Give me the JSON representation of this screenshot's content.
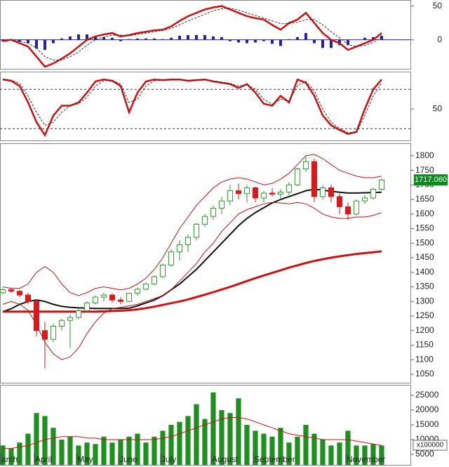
{
  "chart_data": [
    {
      "type": "macd",
      "ylim": [
        -43,
        59
      ],
      "yticks": [
        0,
        50
      ],
      "zero_line": true,
      "series": [
        {
          "color": "#cc1111",
          "dash": false,
          "values": [
            -2,
            0,
            -5,
            -10,
            -25,
            -40,
            -35,
            -28,
            -20,
            -10,
            0,
            5,
            8,
            10,
            5,
            7,
            10,
            12,
            14,
            15,
            20,
            28,
            35,
            40,
            45,
            48,
            50,
            45,
            40,
            35,
            32,
            30,
            22,
            15,
            25,
            30,
            40,
            25,
            10,
            0,
            -5,
            -15,
            -10,
            -5,
            0,
            10
          ]
        },
        {
          "color": "#333333",
          "dash": true,
          "values": [
            0,
            0,
            -2,
            -5,
            -12,
            -25,
            -30,
            -30,
            -25,
            -18,
            -8,
            0,
            4,
            7,
            7,
            6,
            8,
            10,
            12,
            14,
            17,
            22,
            28,
            33,
            38,
            43,
            46,
            47,
            44,
            40,
            36,
            32,
            28,
            24,
            24,
            26,
            30,
            30,
            22,
            12,
            3,
            -7,
            -10,
            -8,
            -4,
            4
          ]
        }
      ],
      "histogram": {
        "color": "#2222a0",
        "values": [
          -2,
          0,
          -3,
          -5,
          -13,
          -15,
          -5,
          2,
          5,
          8,
          8,
          5,
          4,
          3,
          -2,
          1,
          2,
          2,
          2,
          1,
          3,
          6,
          7,
          7,
          7,
          5,
          4,
          -2,
          -4,
          -5,
          -4,
          -2,
          -6,
          -9,
          1,
          4,
          10,
          -5,
          -12,
          -12,
          -8,
          -8,
          0,
          3,
          4,
          6
        ]
      }
    },
    {
      "type": "stochastic",
      "ylim": [
        2,
        107
      ],
      "yticks": [
        50
      ],
      "ref_lines": [
        80,
        20
      ],
      "series": [
        {
          "color": "#cc1111",
          "dash": false,
          "values": [
            95,
            93,
            85,
            60,
            30,
            10,
            40,
            55,
            55,
            60,
            75,
            92,
            95,
            93,
            85,
            45,
            75,
            92,
            95,
            94,
            95,
            95,
            93,
            94,
            95,
            92,
            90,
            88,
            82,
            88,
            75,
            58,
            55,
            70,
            60,
            95,
            90,
            70,
            40,
            25,
            18,
            12,
            15,
            50,
            80,
            95
          ]
        },
        {
          "color": "#333333",
          "dash": true,
          "values": [
            96,
            94,
            89,
            70,
            45,
            25,
            30,
            45,
            55,
            58,
            68,
            85,
            93,
            94,
            88,
            60,
            65,
            85,
            93,
            95,
            95,
            95,
            94,
            94,
            95,
            93,
            91,
            89,
            85,
            87,
            80,
            65,
            57,
            65,
            62,
            85,
            92,
            78,
            50,
            30,
            20,
            14,
            14,
            40,
            70,
            90
          ]
        }
      ]
    },
    {
      "type": "candlestick",
      "ylim": [
        1021,
        1843
      ],
      "yticks": [
        1050,
        1100,
        1150,
        1200,
        1250,
        1300,
        1350,
        1400,
        1450,
        1500,
        1550,
        1600,
        1650,
        1700,
        1750,
        1800
      ],
      "x": [
        0,
        1,
        2,
        3,
        4,
        5,
        6,
        7,
        8,
        9,
        10,
        11,
        12,
        13,
        14,
        15,
        16,
        17,
        18,
        19,
        20,
        21,
        22,
        23,
        24,
        25,
        26,
        27,
        28,
        29,
        30,
        31,
        32,
        33,
        34,
        35,
        36,
        37,
        38,
        39,
        40,
        41,
        42,
        43,
        44,
        45
      ],
      "up_color": "#2a9a2a",
      "down_color": "#d41c1c",
      "ohlc": [
        [
          1330,
          1345,
          1325,
          1340
        ],
        [
          1340,
          1348,
          1330,
          1335
        ],
        [
          1335,
          1340,
          1315,
          1322
        ],
        [
          1322,
          1330,
          1290,
          1300
        ],
        [
          1300,
          1305,
          1180,
          1200
        ],
        [
          1200,
          1230,
          1070,
          1170
        ],
        [
          1170,
          1225,
          1160,
          1215
        ],
        [
          1215,
          1240,
          1200,
          1235
        ],
        [
          1235,
          1255,
          1140,
          1245
        ],
        [
          1245,
          1275,
          1240,
          1268
        ],
        [
          1268,
          1300,
          1262,
          1295
        ],
        [
          1295,
          1320,
          1290,
          1315
        ],
        [
          1315,
          1330,
          1300,
          1322
        ],
        [
          1322,
          1328,
          1295,
          1305
        ],
        [
          1305,
          1315,
          1290,
          1300
        ],
        [
          1300,
          1330,
          1298,
          1328
        ],
        [
          1328,
          1348,
          1320,
          1342
        ],
        [
          1342,
          1365,
          1338,
          1360
        ],
        [
          1360,
          1390,
          1355,
          1385
        ],
        [
          1385,
          1430,
          1380,
          1425
        ],
        [
          1425,
          1480,
          1420,
          1470
        ],
        [
          1470,
          1510,
          1440,
          1495
        ],
        [
          1495,
          1530,
          1470,
          1520
        ],
        [
          1520,
          1570,
          1510,
          1565
        ],
        [
          1565,
          1600,
          1555,
          1592
        ],
        [
          1592,
          1630,
          1580,
          1620
        ],
        [
          1620,
          1660,
          1600,
          1645
        ],
        [
          1645,
          1700,
          1630,
          1680
        ],
        [
          1680,
          1705,
          1650,
          1670
        ],
        [
          1670,
          1700,
          1640,
          1690
        ],
        [
          1690,
          1695,
          1640,
          1655
        ],
        [
          1655,
          1680,
          1640,
          1672
        ],
        [
          1672,
          1690,
          1660,
          1668
        ],
        [
          1668,
          1685,
          1650,
          1675
        ],
        [
          1675,
          1710,
          1665,
          1700
        ],
        [
          1700,
          1760,
          1695,
          1755
        ],
        [
          1755,
          1800,
          1745,
          1780
        ],
        [
          1780,
          1790,
          1640,
          1660
        ],
        [
          1660,
          1700,
          1650,
          1690
        ],
        [
          1690,
          1700,
          1640,
          1660
        ],
        [
          1660,
          1670,
          1600,
          1625
        ],
        [
          1625,
          1640,
          1580,
          1600
        ],
        [
          1600,
          1650,
          1595,
          1645
        ],
        [
          1645,
          1665,
          1635,
          1655
        ],
        [
          1655,
          1690,
          1650,
          1685
        ],
        [
          1685,
          1722,
          1680,
          1717.06
        ]
      ],
      "last_label": "1717.060",
      "last_color": "#0b8a1e",
      "series": [
        {
          "color": "#111111",
          "width": 2,
          "values": [
            1265,
            1275,
            1290,
            1300,
            1305,
            1300,
            1290,
            1283,
            1280,
            1278,
            1277,
            1276,
            1276,
            1276,
            1276,
            1277,
            1285,
            1295,
            1305,
            1320,
            1340,
            1360,
            1385,
            1410,
            1440,
            1470,
            1500,
            1530,
            1560,
            1585,
            1605,
            1622,
            1638,
            1650,
            1660,
            1670,
            1680,
            1685,
            1682,
            1678,
            1675,
            1672,
            1672,
            1673,
            1674,
            1675
          ]
        },
        {
          "color": "#cc1111",
          "width": 3,
          "values": [
            1265,
            1265,
            1265,
            1265,
            1265,
            1265,
            1265,
            1265,
            1265,
            1265,
            1265,
            1265,
            1266,
            1267,
            1268,
            1270,
            1273,
            1277,
            1282,
            1288,
            1294,
            1300,
            1307,
            1315,
            1323,
            1332,
            1341,
            1350,
            1360,
            1370,
            1380,
            1389,
            1398,
            1407,
            1416,
            1424,
            1432,
            1439,
            1445,
            1450,
            1455,
            1459,
            1463,
            1466,
            1469,
            1472
          ]
        },
        {
          "color": "#b01818",
          "width": 1,
          "values": [
            1350,
            1345,
            1345,
            1360,
            1400,
            1420,
            1400,
            1360,
            1330,
            1320,
            1330,
            1345,
            1350,
            1345,
            1340,
            1345,
            1360,
            1380,
            1410,
            1450,
            1500,
            1550,
            1590,
            1630,
            1660,
            1690,
            1710,
            1720,
            1725,
            1720,
            1710,
            1700,
            1705,
            1720,
            1740,
            1770,
            1800,
            1805,
            1790,
            1770,
            1750,
            1740,
            1730,
            1725,
            1725,
            1730
          ]
        },
        {
          "color": "#b01818",
          "width": 1,
          "values": [
            1290,
            1300,
            1290,
            1270,
            1220,
            1160,
            1120,
            1100,
            1110,
            1140,
            1190,
            1230,
            1260,
            1275,
            1280,
            1285,
            1290,
            1300,
            1310,
            1320,
            1340,
            1370,
            1400,
            1430,
            1470,
            1500,
            1540,
            1570,
            1600,
            1615,
            1625,
            1635,
            1640,
            1638,
            1635,
            1640,
            1635,
            1620,
            1600,
            1590,
            1585,
            1585,
            1590,
            1590,
            1595,
            1605
          ]
        }
      ]
    },
    {
      "type": "bar",
      "ylim": [
        1430,
        28570
      ],
      "yticks": [
        5000,
        10000,
        15000,
        20000,
        25000
      ],
      "unit_label": "x100000",
      "xlim": [
        -0.33,
        48.42
      ],
      "xticks": [
        {
          "value": 0,
          "label": "arch"
        },
        {
          "value": 4,
          "label": "April"
        },
        {
          "value": 9,
          "label": "May"
        },
        {
          "value": 14,
          "label": "June"
        },
        {
          "value": 19,
          "label": "July"
        },
        {
          "value": 25,
          "label": "August"
        },
        {
          "value": 30,
          "label": "September"
        },
        {
          "value": 41,
          "label": "November"
        }
      ],
      "color": "#1f8f1f",
      "values": [
        8000,
        7000,
        9000,
        12000,
        19000,
        18000,
        14000,
        10000,
        11000,
        8000,
        9000,
        8500,
        11000,
        9000,
        10000,
        11000,
        12000,
        9000,
        11000,
        13000,
        15000,
        16000,
        18000,
        22000,
        17000,
        26000,
        20000,
        19000,
        24000,
        15000,
        13000,
        12000,
        11000,
        14000,
        9000,
        11000,
        15000,
        12000,
        10000,
        8000,
        9000,
        13000,
        8000,
        8000,
        8500,
        8000
      ],
      "ma": {
        "color": "#cc1111",
        "values": [
          7000,
          7000,
          7500,
          8000,
          9000,
          10000,
          10500,
          11000,
          11000,
          11000,
          10500,
          10500,
          10000,
          10000,
          10000,
          10000,
          10000,
          10000,
          10000,
          10500,
          11000,
          12000,
          13000,
          14000,
          15000,
          16000,
          17000,
          17500,
          17500,
          17000,
          16000,
          15000,
          14000,
          13000,
          12000,
          11500,
          11000,
          10500,
          10000,
          10000,
          10000,
          10000,
          9500,
          9000,
          8500,
          8000
        ]
      }
    }
  ]
}
